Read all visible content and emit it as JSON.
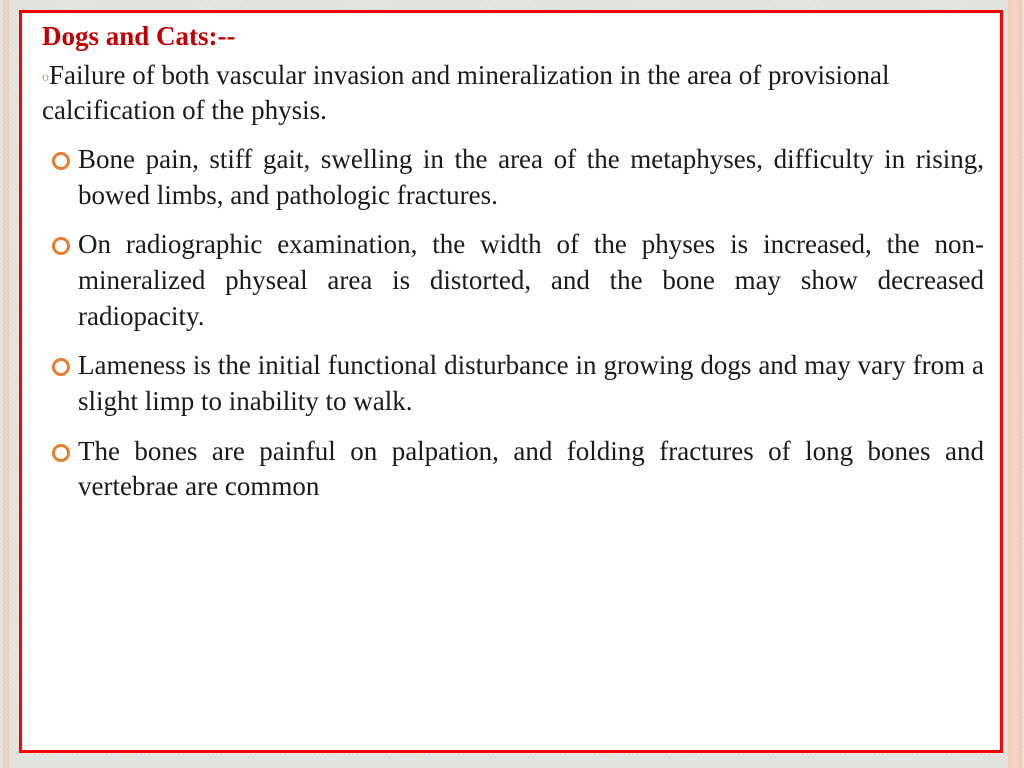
{
  "heading": "Dogs and Cats:--",
  "first_item_bullet": "o",
  "first_item_text": "Failure of both vascular invasion and mineralization in the area of provisional calcification of the physis.",
  "bullets": [
    "Bone pain, stiff gait, swelling in the area of the metaphyses, difficulty in rising, bowed limbs, and pathologic fractures.",
    "On radiographic examination, the width of the physes is increased, the non-mineralized physeal area is distorted, and the bone may show decreased radiopacity.",
    "Lameness is the initial functional disturbance in growing dogs and may vary from a slight limp to inability to walk.",
    "The bones are painful on palpation, and folding fractures of long bones and vertebrae are common"
  ],
  "colors": {
    "border": "#ff0000",
    "heading": "#c00000",
    "bullet_ring": "#e67e30",
    "small_bullet": "#e89060",
    "body_text": "#1a1a1a",
    "page_bg": "#e8e8e4",
    "box_bg": "#ffffff"
  }
}
